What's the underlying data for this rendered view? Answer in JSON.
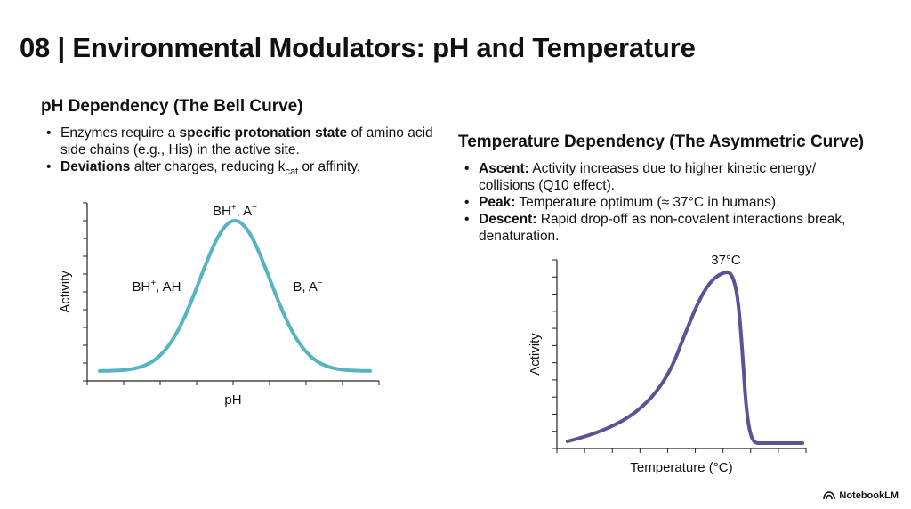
{
  "slide": {
    "title": "08 | Environmental Modulators: pH and Temperature"
  },
  "ph_section": {
    "heading": "pH Dependency (The Bell Curve)",
    "bullets": [
      {
        "pre": "Enzymes require a ",
        "bold": "specific protonation state",
        "post": " of amino acid side chains (e.g., His) in the active site."
      },
      {
        "bold": "Deviations",
        "post": " alter charges, reducing k",
        "sub": "cat",
        "post2": " or affinity."
      }
    ]
  },
  "temp_section": {
    "heading": "Temperature Dependency (The Asymmetric Curve)",
    "bullets": [
      {
        "bold": "Ascent:",
        "post": " Activity increases due to higher kinetic energy/ collisions (Q10 effect)."
      },
      {
        "bold": "Peak:",
        "post": " Temperature optimum (≈ 37°C in humans)."
      },
      {
        "bold": "Descent:",
        "post": " Rapid drop-off as non-covalent interactions break, denaturation."
      }
    ]
  },
  "branding": {
    "label": "NotebookLM",
    "icon": "notebooklm-logo-icon"
  },
  "chart_data": [
    {
      "type": "line",
      "xlabel": "pH",
      "ylabel": "Activity",
      "color": "#56b3c2",
      "shape": "gaussian",
      "peak_x": 0.5,
      "width": 0.13,
      "baseline": 0.04,
      "annotations": [
        {
          "text": "BH",
          "sup": "+",
          "tail": ", A",
          "sup2": "−",
          "role": "peak"
        },
        {
          "text": "BH",
          "sup": "+",
          "tail": ", AH",
          "role": "left"
        },
        {
          "text": "B, A",
          "sup": "−",
          "tail": "",
          "role": "right"
        }
      ]
    },
    {
      "type": "line",
      "xlabel": "Temperature (°C)",
      "ylabel": "Activity",
      "color": "#5b5396",
      "shape": "asymmetric",
      "annotations": [
        {
          "text": "37°C",
          "role": "peak"
        }
      ]
    }
  ]
}
